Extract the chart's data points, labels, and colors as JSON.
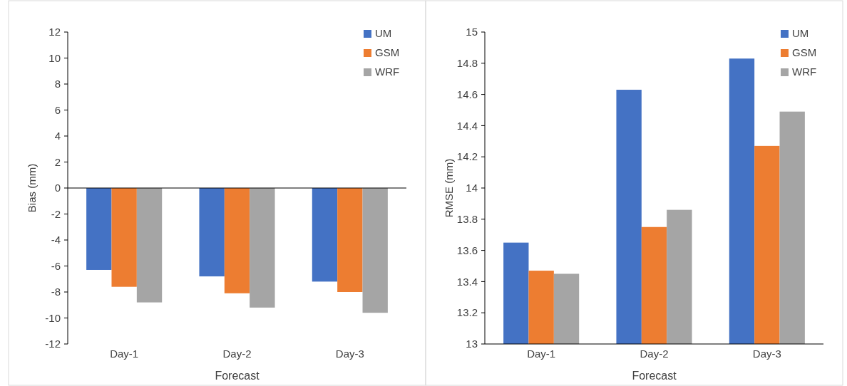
{
  "chart_data": [
    {
      "type": "bar",
      "xlabel": "Forecast",
      "ylabel": "Bias (mm)",
      "categories": [
        "Day-1",
        "Day-2",
        "Day-3"
      ],
      "series": [
        {
          "name": "UM",
          "color": "#4472c4",
          "values": [
            -6.3,
            -6.8,
            -7.2
          ]
        },
        {
          "name": "GSM",
          "color": "#ed7d31",
          "values": [
            -7.6,
            -8.1,
            -8.0
          ]
        },
        {
          "name": "WRF",
          "color": "#a5a5a5",
          "values": [
            -8.8,
            -9.2,
            -9.6
          ]
        }
      ],
      "ylim": [
        -12,
        12
      ],
      "yticks": [
        -12,
        -10,
        -8,
        -6,
        -4,
        -2,
        0,
        2,
        4,
        6,
        8,
        10,
        12
      ],
      "legend": "top right"
    },
    {
      "type": "bar",
      "xlabel": "Forecast",
      "ylabel": "RMSE (mm)",
      "categories": [
        "Day-1",
        "Day-2",
        "Day-3"
      ],
      "series": [
        {
          "name": "UM",
          "color": "#4472c4",
          "values": [
            13.65,
            14.63,
            14.83
          ]
        },
        {
          "name": "GSM",
          "color": "#ed7d31",
          "values": [
            13.47,
            13.75,
            14.27
          ]
        },
        {
          "name": "WRF",
          "color": "#a5a5a5",
          "values": [
            13.45,
            13.86,
            14.49
          ]
        }
      ],
      "ylim": [
        13,
        15
      ],
      "yticks": [
        13,
        13.2,
        13.4,
        13.6,
        13.8,
        14,
        14.2,
        14.4,
        14.6,
        14.8,
        15
      ],
      "legend": "top right"
    }
  ]
}
